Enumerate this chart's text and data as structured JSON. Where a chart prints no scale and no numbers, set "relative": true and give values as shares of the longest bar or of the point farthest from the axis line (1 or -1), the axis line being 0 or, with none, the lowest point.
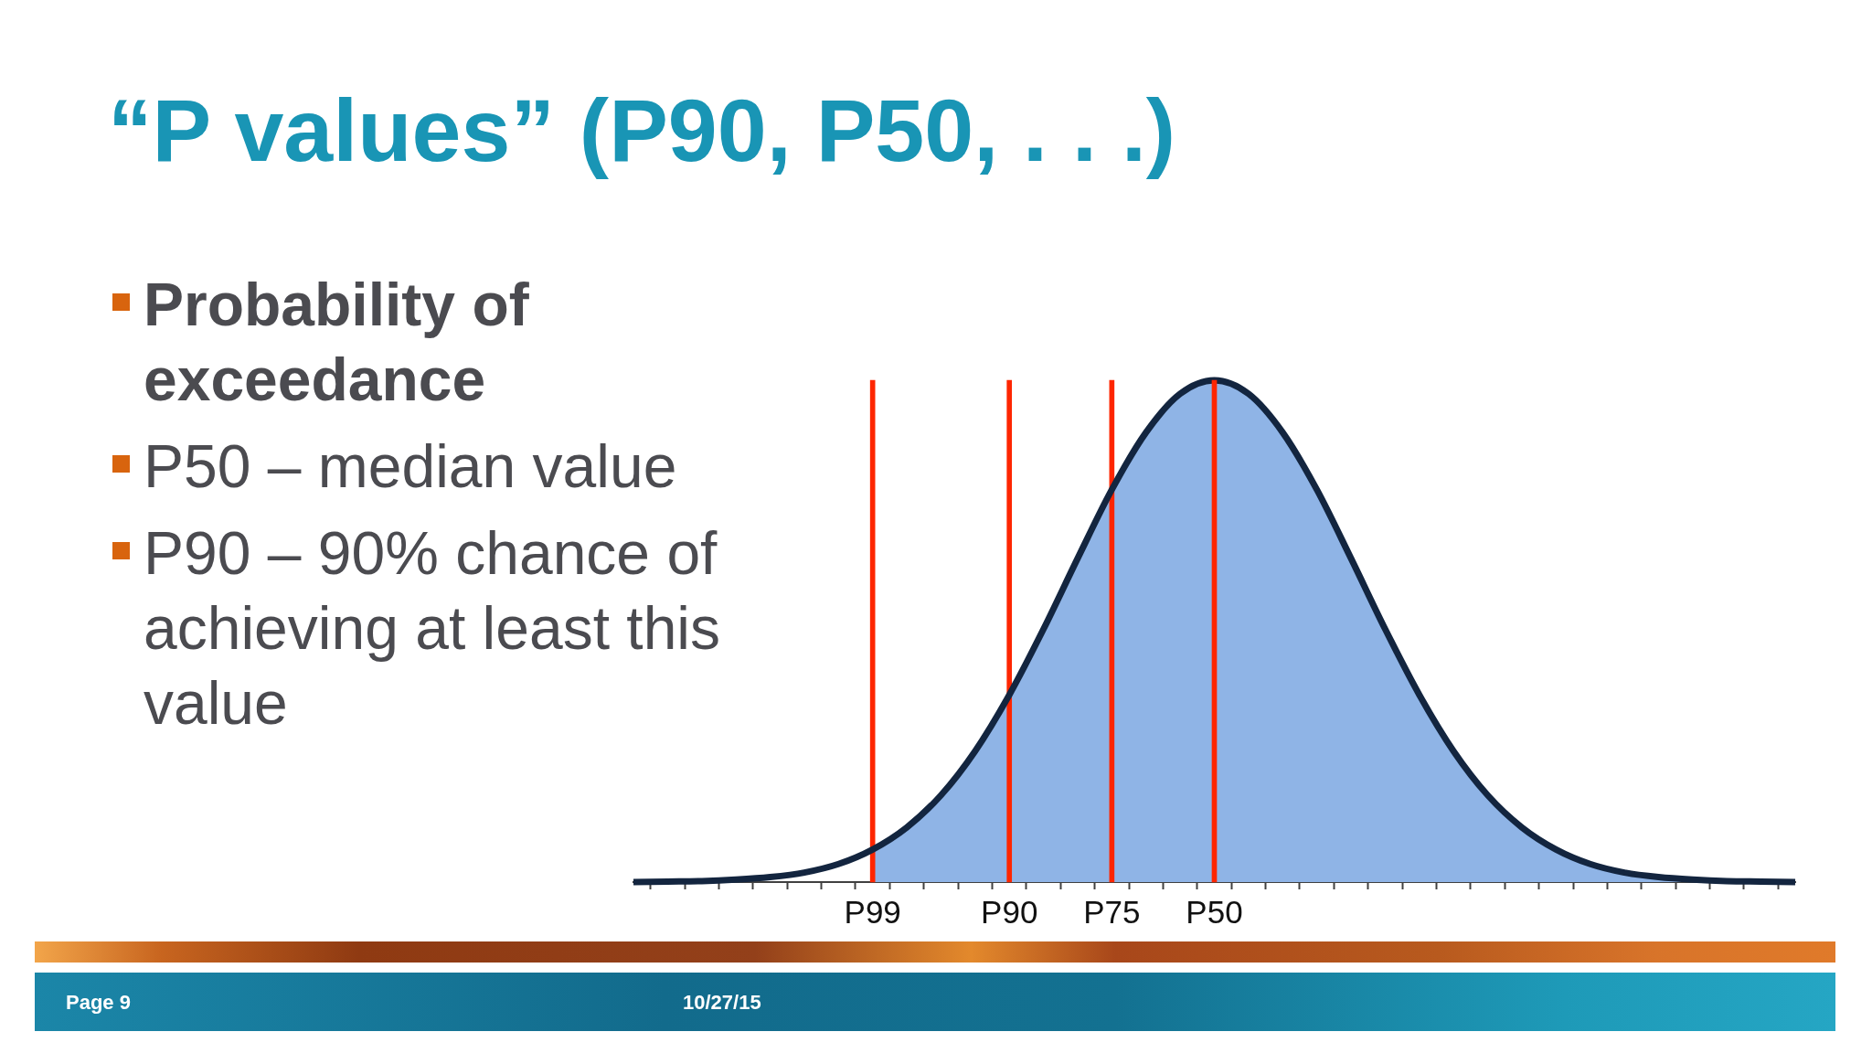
{
  "chart_data": {
    "type": "line",
    "title": "“P values” (P90, P50, . . .)",
    "categories": [
      null,
      null,
      null,
      null,
      null,
      null,
      null,
      "P99",
      null,
      null,
      null,
      "P90",
      null,
      null,
      "P75",
      null,
      null,
      "P50",
      null,
      null,
      null,
      null,
      null,
      null,
      null,
      null,
      null,
      null,
      null,
      null,
      null,
      null,
      null,
      null,
      null
    ],
    "relative": true,
    "marker": "none",
    "series": [
      {
        "type": "area",
        "color": "#8fb4e6",
        "values": [
          null,
          null,
          null,
          null,
          null,
          null,
          null,
          0.065,
          0.109,
          0.173,
          0.261,
          0.373,
          0.504,
          0.645,
          0.782,
          0.896,
          0.973,
          1,
          0.973,
          0.896,
          0.782,
          0.645,
          0.504,
          0.373,
          0.261,
          0.173,
          0.109,
          0.065,
          0.036,
          0.019,
          0.01,
          0.005,
          0.002,
          0.001,
          0
        ]
      },
      {
        "type": "bar",
        "color": "#fe2600",
        "values": [
          null,
          null,
          null,
          null,
          null,
          null,
          null,
          1,
          null,
          null,
          null,
          1,
          null,
          null,
          1,
          null,
          null,
          null,
          null,
          null,
          null,
          null,
          null,
          null,
          null,
          null,
          null,
          null,
          null,
          null,
          null,
          null,
          null,
          null,
          null
        ]
      },
      {
        "color": "#13253f",
        "values": [
          0,
          0.001,
          0.002,
          0.005,
          0.01,
          0.019,
          0.036,
          0.065,
          0.109,
          0.173,
          0.261,
          0.373,
          0.504,
          0.645,
          0.782,
          0.896,
          0.973,
          1,
          0.973,
          0.896,
          0.782,
          0.645,
          0.504,
          0.373,
          0.261,
          0.173,
          0.109,
          0.065,
          0.036,
          0.019,
          0.01,
          0.005,
          0.002,
          0.001,
          0
        ]
      },
      {
        "type": "bar",
        "color": "#fe2600",
        "values": [
          null,
          null,
          null,
          null,
          null,
          null,
          null,
          null,
          null,
          null,
          null,
          null,
          null,
          null,
          null,
          null,
          null,
          1,
          null,
          null,
          null,
          null,
          null,
          null,
          null,
          null,
          null,
          null,
          null,
          null,
          null,
          null,
          null,
          null,
          null
        ]
      }
    ],
    "annotations": [
      "Probability of exceedance",
      "P50 – median value",
      "P90 – 90% chance of achieving at least this value",
      "Page 9",
      "10/27/15"
    ]
  }
}
